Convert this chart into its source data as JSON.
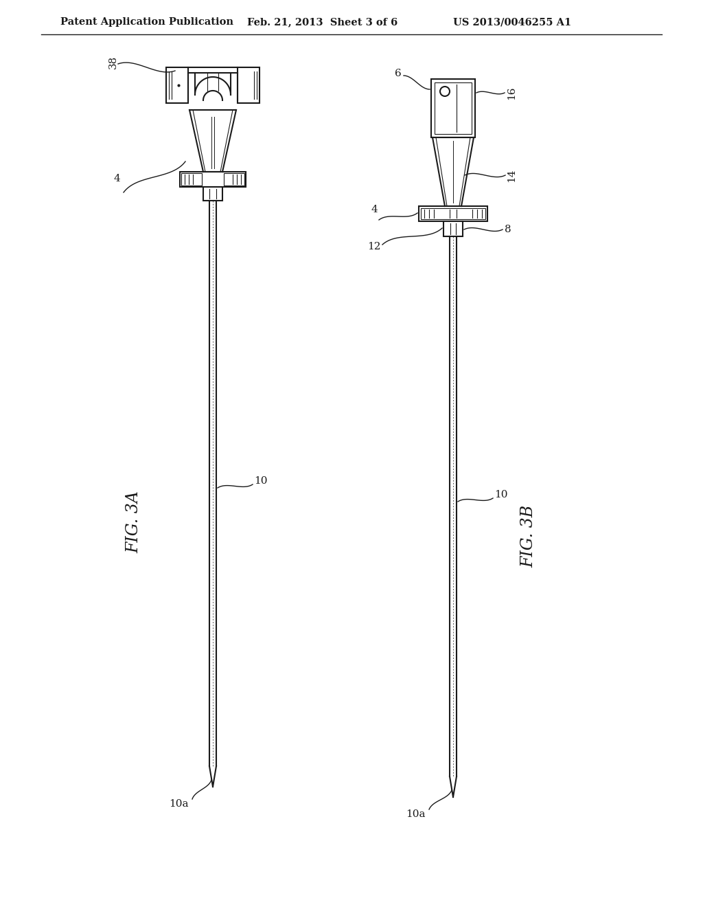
{
  "bg_color": "#ffffff",
  "line_color": "#1a1a1a",
  "header_left": "Patent Application Publication",
  "header_mid": "Feb. 21, 2013  Sheet 3 of 6",
  "header_right": "US 2013/0046255 A1",
  "fig3a_label": "FIG. 3A",
  "fig3b_label": "FIG. 3B",
  "label_38": "38",
  "label_4a": "4",
  "label_4b": "4",
  "label_10_left": "10",
  "label_10_right": "10",
  "label_10a_left": "10a",
  "label_10a_right": "10a",
  "label_6": "6",
  "label_16": "16",
  "label_14": "14",
  "label_8": "8",
  "label_12": "12"
}
